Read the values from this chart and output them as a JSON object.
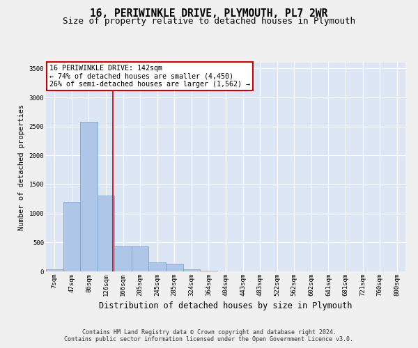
{
  "title": "16, PERIWINKLE DRIVE, PLYMOUTH, PL7 2WR",
  "subtitle": "Size of property relative to detached houses in Plymouth",
  "xlabel": "Distribution of detached houses by size in Plymouth",
  "ylabel": "Number of detached properties",
  "bar_labels": [
    "7sqm",
    "47sqm",
    "86sqm",
    "126sqm",
    "166sqm",
    "205sqm",
    "245sqm",
    "285sqm",
    "324sqm",
    "364sqm",
    "404sqm",
    "443sqm",
    "483sqm",
    "522sqm",
    "562sqm",
    "602sqm",
    "641sqm",
    "681sqm",
    "721sqm",
    "760sqm",
    "800sqm"
  ],
  "bar_values": [
    35,
    1200,
    2580,
    1310,
    430,
    430,
    155,
    130,
    40,
    8,
    5,
    0,
    0,
    0,
    0,
    0,
    0,
    0,
    0,
    0,
    0
  ],
  "bar_color": "#aec6e8",
  "bar_edge_color": "#6a9fd0",
  "bar_linewidth": 0.5,
  "background_color": "#dce6f5",
  "grid_color": "#ffffff",
  "annotation_text": "16 PERIWINKLE DRIVE: 142sqm\n← 74% of detached houses are smaller (4,450)\n26% of semi-detached houses are larger (1,562) →",
  "annotation_box_color": "#ffffff",
  "annotation_box_edgecolor": "#cc0000",
  "vline_x": 3.41,
  "vline_color": "#cc0000",
  "ylim": [
    0,
    3600
  ],
  "yticks": [
    0,
    500,
    1000,
    1500,
    2000,
    2500,
    3000,
    3500
  ],
  "footer_text": "Contains HM Land Registry data © Crown copyright and database right 2024.\nContains public sector information licensed under the Open Government Licence v3.0.",
  "title_fontsize": 10.5,
  "subtitle_fontsize": 9,
  "xlabel_fontsize": 8.5,
  "ylabel_fontsize": 7.5,
  "tick_fontsize": 6.5,
  "annotation_fontsize": 7.2,
  "footer_fontsize": 6
}
